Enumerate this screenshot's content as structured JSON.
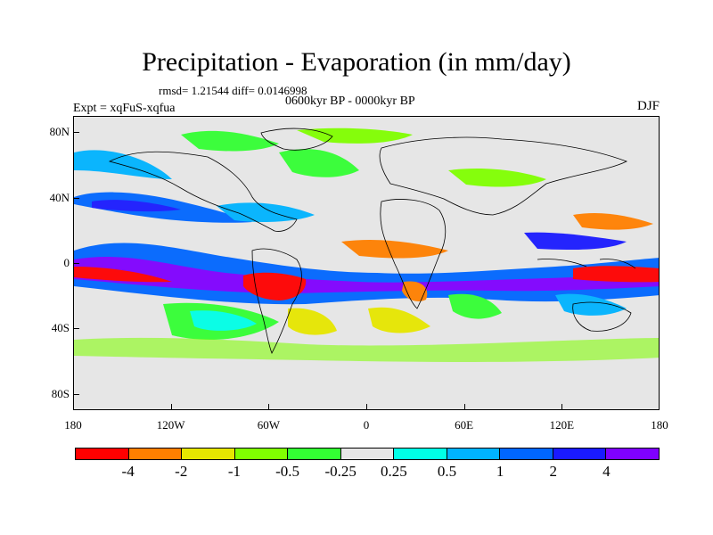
{
  "title": "Precipitation - Evaporation (in mm/day)",
  "stats": "rmsd= 1.21544 diff= 0.0146998",
  "period": "0600kyr BP - 0000kyr BP",
  "experiment": "Expt = xqFuS-xqfua",
  "season": "DJF",
  "map": {
    "lat_labels": [
      "80N",
      "40N",
      "0",
      "40S",
      "80S"
    ],
    "lat_values": [
      80,
      40,
      0,
      -40,
      -80
    ],
    "lon_labels": [
      "180",
      "120W",
      "60W",
      "0",
      "60E",
      "120E",
      "180"
    ],
    "lon_values": [
      -180,
      -120,
      -60,
      0,
      60,
      120,
      180
    ]
  },
  "colorbar": {
    "labels": [
      "-4",
      "-2",
      "-1",
      "-0.5",
      "-0.25",
      "0.25",
      "0.5",
      "1",
      "2",
      "4"
    ],
    "colors": [
      "#ff0000",
      "#ff7f00",
      "#e6e600",
      "#80ff00",
      "#33ff33",
      "#e6e6e6",
      "#00ffe6",
      "#00b3ff",
      "#0066ff",
      "#1a1aff",
      "#7f00ff"
    ]
  }
}
